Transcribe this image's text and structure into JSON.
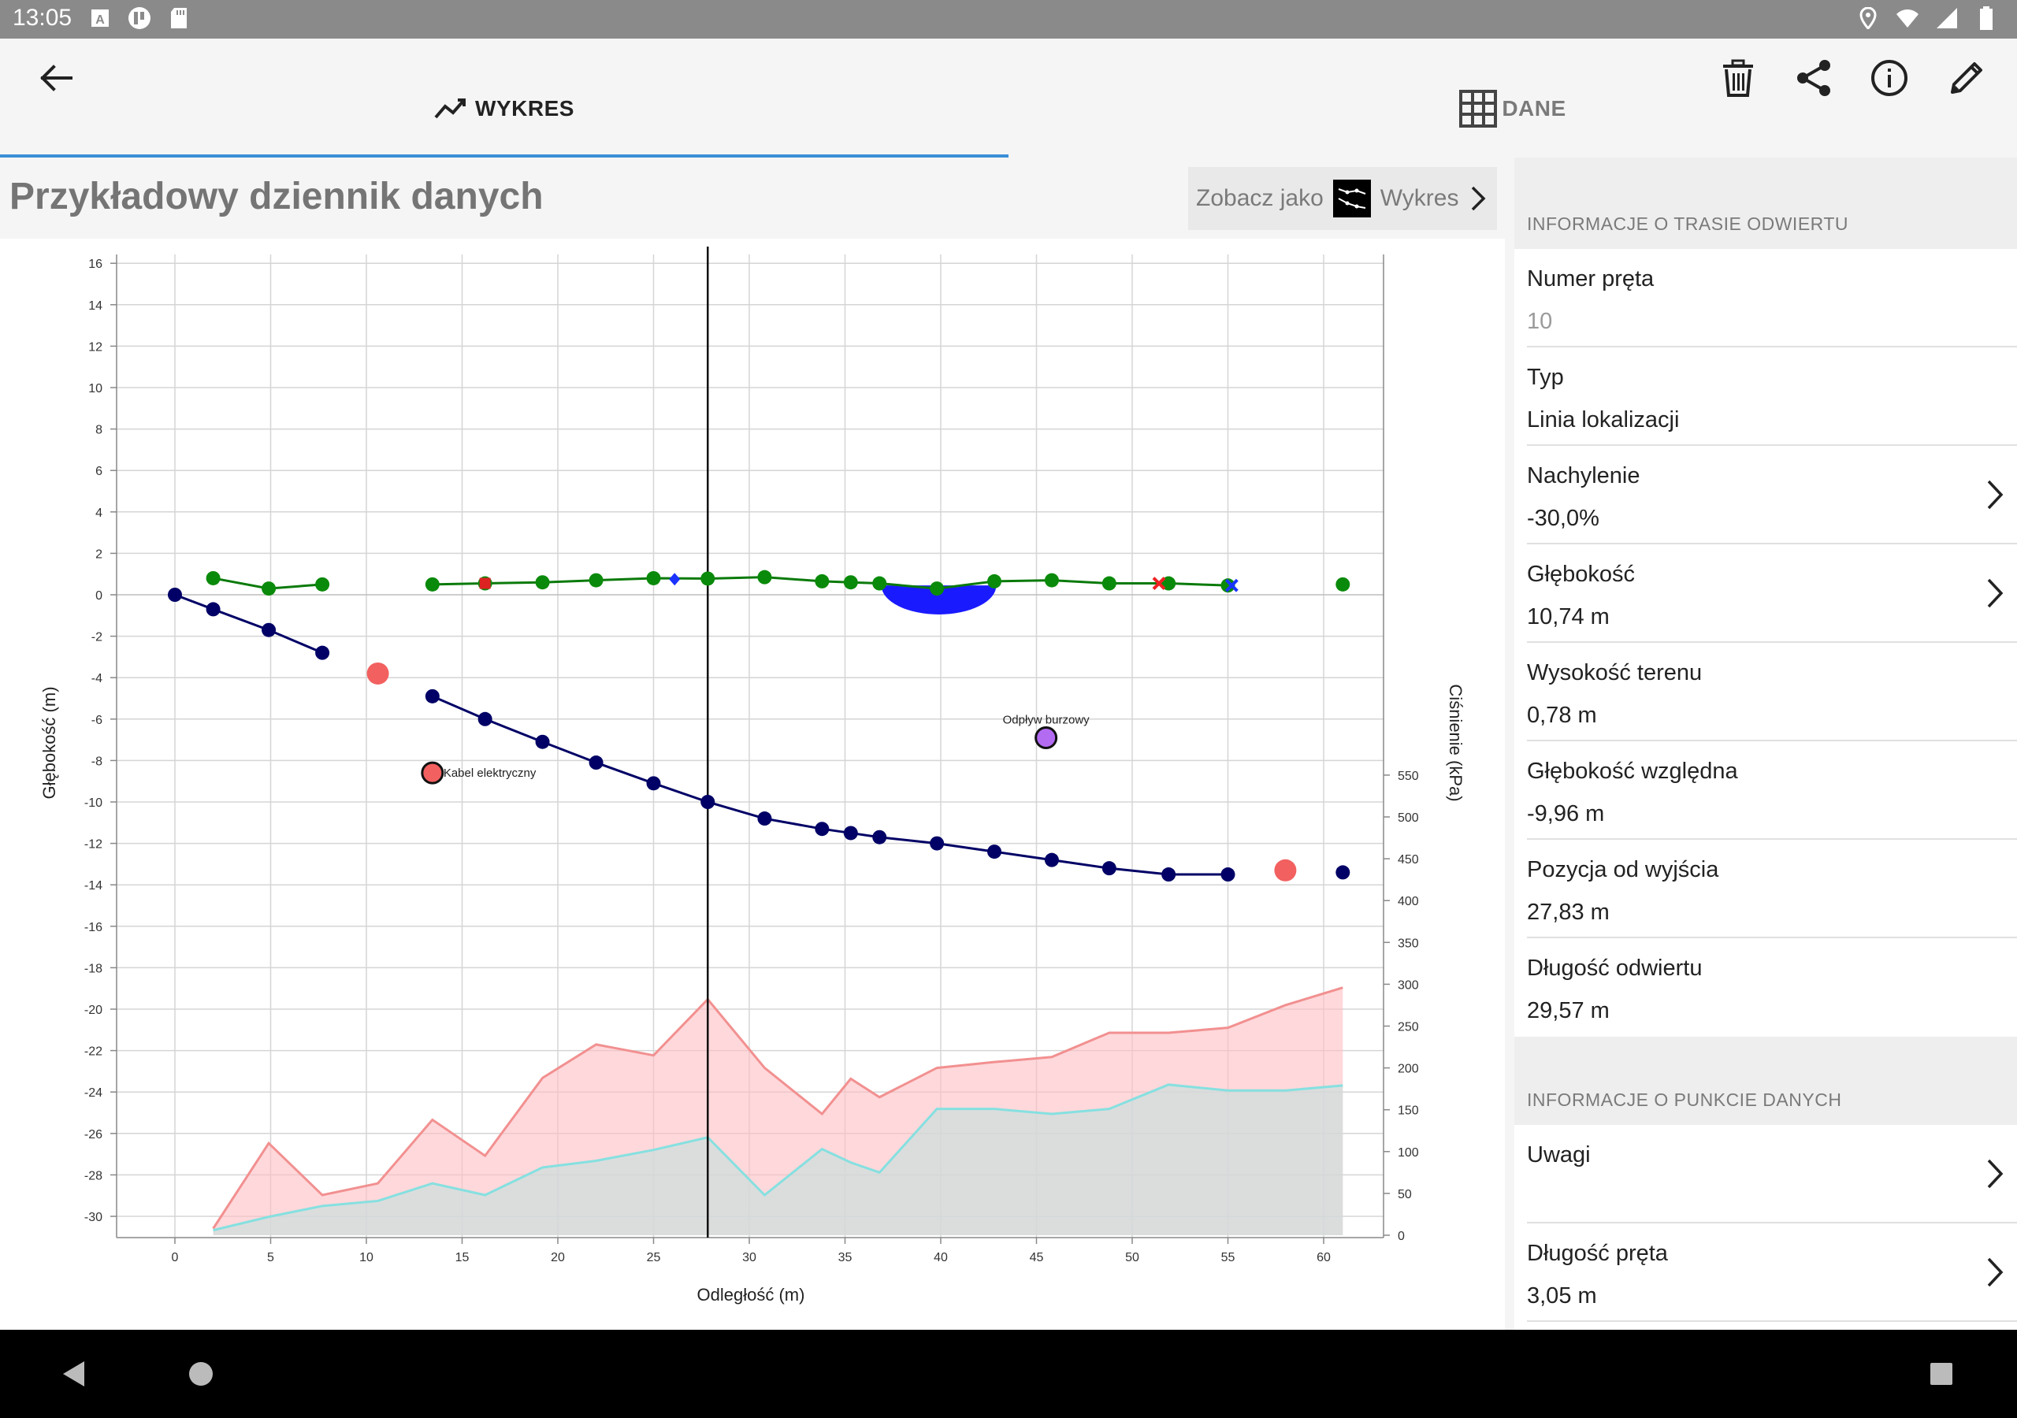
{
  "status": {
    "time": "13:05"
  },
  "tabs": [
    {
      "label": "WYKRES",
      "icon": "line-chart-icon",
      "active": true
    },
    {
      "label": "DANE",
      "icon": "grid-icon",
      "active": false
    }
  ],
  "toolbar": {
    "actions": [
      "trash-icon",
      "share-icon",
      "info-icon",
      "edit-icon"
    ]
  },
  "title": "Przykładowy dziennik danych",
  "see_as": {
    "label": "Zobacz jako",
    "value": "Wykres"
  },
  "sidebar": {
    "section1": "INFORMACJE O TRASIE ODWIERTU",
    "rows": [
      {
        "label": "Numer pręta",
        "value": "10",
        "muted": true,
        "chevron": false
      },
      {
        "label": "Typ",
        "value": "Linia lokalizacji",
        "chevron": false
      },
      {
        "label": "Nachylenie",
        "value": "-30,0%",
        "chevron": true
      },
      {
        "label": "Głębokość",
        "value": "10,74 m",
        "chevron": true
      },
      {
        "label": "Wysokość terenu",
        "value": "0,78 m",
        "chevron": false
      },
      {
        "label": "Głębokość względna",
        "value": "-9,96 m",
        "chevron": false
      },
      {
        "label": "Pozycja od wyjścia",
        "value": "27,83 m",
        "chevron": false
      },
      {
        "label": "Długość odwiertu",
        "value": "29,57 m",
        "chevron": false
      }
    ],
    "section2": "INFORMACJE O PUNKCIE DANYCH",
    "rows2": [
      {
        "label": "Uwagi",
        "value": "",
        "chevron": true
      },
      {
        "label": "Długość pręta",
        "value": "3,05 m",
        "chevron": true
      }
    ]
  },
  "colors": {
    "accent": "#3b8fd8",
    "bore": "#000066",
    "terrain": "#0a7a0a",
    "pressure_hi": "#f08080",
    "pressure_lo": "#7fdcdc"
  },
  "chart_data": {
    "type": "line",
    "xlabel": "Odległość (m)",
    "ylabel": "Głębokość (m)",
    "y2label": "Ciśnienie (kPa)",
    "xlim": [
      -3,
      63
    ],
    "ylim": [
      -31,
      16
    ],
    "y2lim": [
      0,
      590
    ],
    "xticks": [
      0,
      5,
      10,
      15,
      20,
      25,
      30,
      35,
      40,
      45,
      50,
      55,
      60
    ],
    "yticks": [
      16,
      14,
      12,
      10,
      8,
      6,
      4,
      2,
      0,
      -2,
      -4,
      -6,
      -8,
      -10,
      -12,
      -14,
      -16,
      -18,
      -20,
      -22,
      -24,
      -26,
      -28,
      -30
    ],
    "y2ticks": [
      550,
      500,
      450,
      400,
      350,
      300,
      250,
      200,
      150,
      100,
      50,
      0
    ],
    "cursor_x": 27.83,
    "series": [
      {
        "name": "bore_path",
        "x": [
          0,
          2,
          4.9,
          7.7,
          13.45,
          16.2,
          19.2,
          22,
          25,
          27.83,
          30.8,
          33.8,
          35.3,
          36.8,
          39.8,
          42.8,
          45.8,
          48.8,
          51.9,
          55,
          61
        ],
        "y": [
          0,
          -0.7,
          -1.7,
          -2.8,
          -4.9,
          -6.0,
          -7.1,
          -8.1,
          -9.1,
          -10.0,
          -10.8,
          -11.3,
          -11.5,
          -11.7,
          -12.0,
          -12.4,
          -12.8,
          -13.2,
          -13.5,
          -13.5,
          -13.4
        ]
      },
      {
        "name": "terrain",
        "segments": [
          {
            "x": [
              2,
              4.9,
              7.7
            ],
            "y": [
              0.8,
              0.3,
              0.5
            ]
          },
          {
            "x": [
              13.45,
              16.2,
              19.2,
              22,
              25,
              27.83,
              30.8,
              33.8,
              35.3,
              36.8,
              39.8,
              42.8,
              45.8,
              48.8,
              51.9,
              55
            ],
            "y": [
              0.5,
              0.55,
              0.6,
              0.7,
              0.8,
              0.78,
              0.85,
              0.65,
              0.6,
              0.55,
              0.3,
              0.65,
              0.7,
              0.55,
              0.55,
              0.45
            ]
          }
        ],
        "extra_points": [
          {
            "x": 61,
            "y": 0.5
          }
        ]
      },
      {
        "name": "pressure_max",
        "x": [
          2,
          4.9,
          7.7,
          10.6,
          13.45,
          16.2,
          19.2,
          22,
          25,
          27.83,
          30.8,
          33.8,
          35.3,
          36.8,
          39.8,
          42.8,
          45.8,
          48.8,
          51.9,
          55,
          58,
          61
        ],
        "y": [
          8,
          110,
          48,
          62,
          138,
          95,
          188,
          228,
          215,
          282,
          200,
          145,
          187,
          165,
          200,
          207,
          213,
          242,
          242,
          248,
          275,
          296
        ]
      },
      {
        "name": "pressure_min",
        "x": [
          2,
          4.9,
          7.7,
          10.6,
          13.45,
          16.2,
          19.2,
          22,
          25,
          27.83,
          30.8,
          33.8,
          35.3,
          36.8,
          39.8,
          42.8,
          45.8,
          48.8,
          51.9,
          55,
          58,
          61
        ],
        "y": [
          6,
          22,
          35,
          41,
          62,
          48,
          81,
          89,
          102,
          117,
          48,
          103,
          87,
          75,
          151,
          151,
          145,
          151,
          180,
          173,
          173,
          179
        ]
      }
    ],
    "markers": [
      {
        "x": 10.6,
        "y": -3.8,
        "color": "#f26060",
        "kind": "dot"
      },
      {
        "x": 13.45,
        "y": -8.6,
        "color": "#f26060",
        "kind": "ring",
        "label": "Kabel elektryczny"
      },
      {
        "x": 45.5,
        "y": -6.9,
        "color": "#b36bf2",
        "kind": "ring",
        "label": "Odpływ burzowy"
      },
      {
        "x": 58,
        "y": -13.3,
        "color": "#f26060",
        "kind": "dot"
      },
      {
        "x": 16.2,
        "y": 0.55,
        "color": "#d22",
        "kind": "square"
      },
      {
        "x": 26.1,
        "y": 0.75,
        "color": "#1a33ff",
        "kind": "diamond"
      },
      {
        "x": 51.4,
        "y": 0.55,
        "color": "#e22",
        "kind": "x"
      },
      {
        "x": 55.2,
        "y": 0.45,
        "color": "#1a33ff",
        "kind": "x"
      }
    ],
    "culvert": {
      "x_center": 39.9,
      "half_width": 3.0,
      "depth": 1.4,
      "top": 0.45,
      "color": "#1a1aff"
    }
  }
}
